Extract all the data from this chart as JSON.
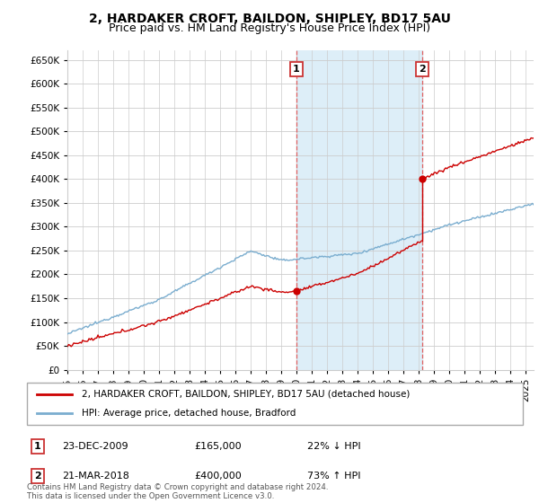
{
  "title": "2, HARDAKER CROFT, BAILDON, SHIPLEY, BD17 5AU",
  "subtitle": "Price paid vs. HM Land Registry's House Price Index (HPI)",
  "ylabel_ticks": [
    0,
    50000,
    100000,
    150000,
    200000,
    250000,
    300000,
    350000,
    400000,
    450000,
    500000,
    550000,
    600000,
    650000
  ],
  "ylim": [
    0,
    670000
  ],
  "xlim_start": 1995.0,
  "xlim_end": 2025.5,
  "sale1_date": 2009.978,
  "sale1_price": 165000,
  "sale1_label": "1",
  "sale1_text": "23-DEC-2009",
  "sale1_pct": "22% ↓ HPI",
  "sale2_date": 2018.22,
  "sale2_price": 400000,
  "sale2_label": "2",
  "sale2_text": "21-MAR-2018",
  "sale2_pct": "73% ↑ HPI",
  "red_line_color": "#cc0000",
  "blue_line_color": "#7aadcf",
  "shade_color": "#ddeef8",
  "dashed_color": "#e06060",
  "background_color": "#ffffff",
  "grid_color": "#cccccc",
  "legend_line1": "2, HARDAKER CROFT, BAILDON, SHIPLEY, BD17 5AU (detached house)",
  "legend_line2": "HPI: Average price, detached house, Bradford",
  "footnote": "Contains HM Land Registry data © Crown copyright and database right 2024.\nThis data is licensed under the Open Government Licence v3.0.",
  "title_fontsize": 10,
  "subtitle_fontsize": 9,
  "tick_fontsize": 7.5
}
